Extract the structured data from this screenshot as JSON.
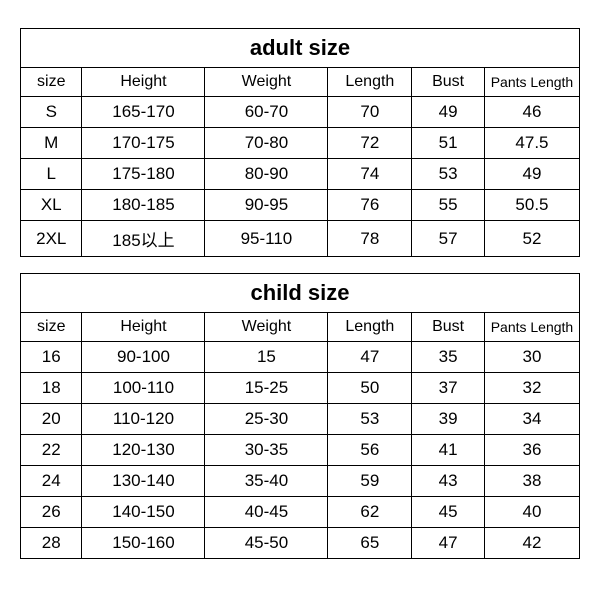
{
  "styling": {
    "border_color": "#000000",
    "background_color": "#ffffff",
    "title_fontsize": 22,
    "header_fontsize": 16,
    "cell_fontsize": 17,
    "font_family": "Arial, sans-serif"
  },
  "adult_table": {
    "title": "adult size",
    "columns": [
      "size",
      "Height",
      "Weight",
      "Length",
      "Bust",
      "Pants Length"
    ],
    "rows": [
      {
        "size": "S",
        "height": "165-170",
        "weight": "60-70",
        "length": "70",
        "bust": "49",
        "pants": "46"
      },
      {
        "size": "M",
        "height": "170-175",
        "weight": "70-80",
        "length": "72",
        "bust": "51",
        "pants": "47.5"
      },
      {
        "size": "L",
        "height": "175-180",
        "weight": "80-90",
        "length": "74",
        "bust": "53",
        "pants": "49"
      },
      {
        "size": "XL",
        "height": "180-185",
        "weight": "90-95",
        "length": "76",
        "bust": "55",
        "pants": "50.5"
      },
      {
        "size": "2XL",
        "height": "185以上",
        "weight": "95-110",
        "length": "78",
        "bust": "57",
        "pants": "52"
      }
    ]
  },
  "child_table": {
    "title": "child size",
    "columns": [
      "size",
      "Height",
      "Weight",
      "Length",
      "Bust",
      "Pants Length"
    ],
    "rows": [
      {
        "size": "16",
        "height": "90-100",
        "weight": "15",
        "length": "47",
        "bust": "35",
        "pants": "30"
      },
      {
        "size": "18",
        "height": "100-110",
        "weight": "15-25",
        "length": "50",
        "bust": "37",
        "pants": "32"
      },
      {
        "size": "20",
        "height": "110-120",
        "weight": "25-30",
        "length": "53",
        "bust": "39",
        "pants": "34"
      },
      {
        "size": "22",
        "height": "120-130",
        "weight": "30-35",
        "length": "56",
        "bust": "41",
        "pants": "36"
      },
      {
        "size": "24",
        "height": "130-140",
        "weight": "35-40",
        "length": "59",
        "bust": "43",
        "pants": "38"
      },
      {
        "size": "26",
        "height": "140-150",
        "weight": "40-45",
        "length": "62",
        "bust": "45",
        "pants": "40"
      },
      {
        "size": "28",
        "height": "150-160",
        "weight": "45-50",
        "length": "65",
        "bust": "47",
        "pants": "42"
      }
    ]
  }
}
